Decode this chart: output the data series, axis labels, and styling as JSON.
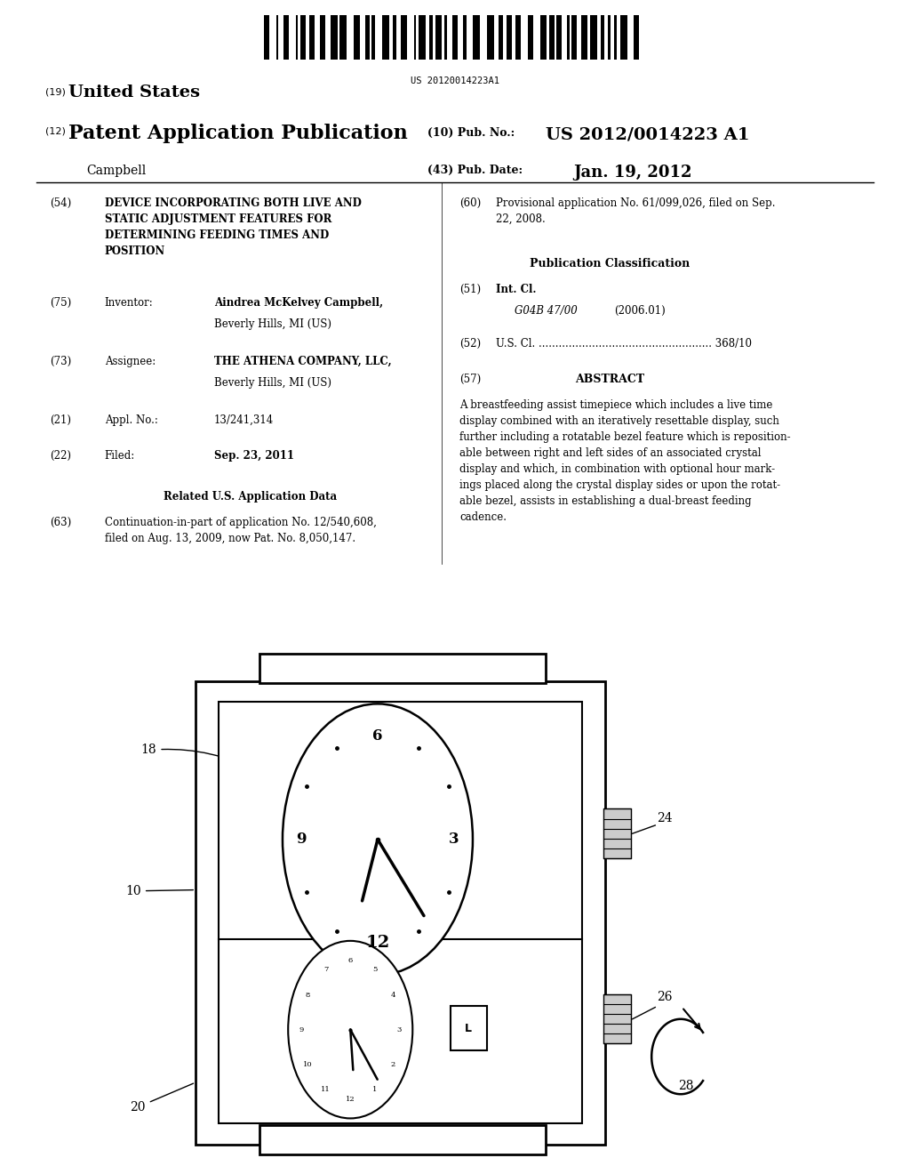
{
  "background_color": "#ffffff",
  "barcode_text": "US 20120014223A1",
  "header": {
    "country_num": "(19)",
    "country": "United States",
    "type_num": "(12)",
    "type": "Patent Application Publication",
    "pub_num_label": "(10) Pub. No.:",
    "pub_num": "US 2012/0014223 A1",
    "inventor": "Campbell",
    "date_label": "(43) Pub. Date:",
    "date": "Jan. 19, 2012"
  },
  "abstract": "A breastfeeding assist timepiece which includes a live time\ndisplay combined with an iteratively resettable display, such\nfurther including a rotatable bezel feature which is reposition-\nable between right and left sides of an associated crystal\ndisplay and which, in combination with optional hour mark-\nings placed along the crystal display sides or upon the rotat-\nable bezel, assists in establishing a dual-breast feeding\ncadence.",
  "related_text": "Continuation-in-part of application No. 12/540,608,\nfiled on Aug. 13, 2009, now Pat. No. 8,050,147.",
  "provisional_text": "Provisional application No. 61/099,026, filed on Sep.\n22, 2008."
}
